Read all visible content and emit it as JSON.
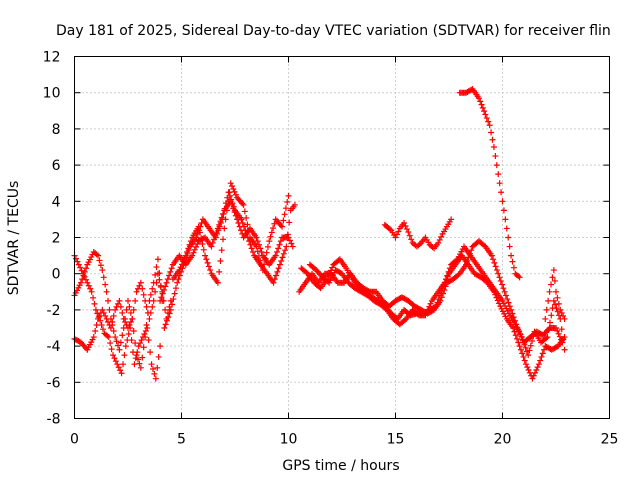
{
  "chart_data": {
    "type": "scatter",
    "title": "Day 181 of 2025, Sidereal Day-to-day VTEC variation (SDTVAR) for receiver flin",
    "xlabel": "GPS time / hours",
    "ylabel": "SDTVAR / TECUs",
    "xlim": [
      0,
      25
    ],
    "ylim": [
      -8,
      12
    ],
    "xticks": [
      0,
      5,
      10,
      15,
      20,
      25
    ],
    "yticks": [
      -8,
      -6,
      -4,
      -2,
      0,
      2,
      4,
      6,
      8,
      10,
      12
    ],
    "grid": true,
    "marker": "+",
    "color": "#ff0000",
    "series": [
      {
        "name": "s1",
        "points": [
          [
            0.0,
            1.0
          ],
          [
            0.2,
            0.5
          ],
          [
            0.4,
            0.0
          ],
          [
            0.6,
            -0.5
          ],
          [
            0.8,
            -1.0
          ],
          [
            1.0,
            -2.0
          ],
          [
            1.2,
            -2.6
          ],
          [
            1.4,
            -3.3
          ],
          [
            1.6,
            -3.5
          ],
          [
            1.8,
            -4.5
          ],
          [
            2.0,
            -5.0
          ],
          [
            2.2,
            -5.5
          ],
          [
            2.4,
            -4.0
          ],
          [
            2.6,
            -3.0
          ],
          [
            2.8,
            -5.0
          ],
          [
            3.0,
            -4.0
          ],
          [
            3.2,
            -3.5
          ],
          [
            3.4,
            -3.0
          ],
          [
            3.6,
            -5.0
          ],
          [
            3.8,
            -5.8
          ],
          [
            4.0,
            -4.0
          ]
        ]
      },
      {
        "name": "s2",
        "points": [
          [
            0.0,
            -1.2
          ],
          [
            0.3,
            -0.5
          ],
          [
            0.6,
            0.5
          ],
          [
            0.9,
            1.2
          ],
          [
            1.1,
            1.0
          ],
          [
            1.3,
            0.2
          ],
          [
            1.5,
            -1.0
          ],
          [
            1.7,
            -2.5
          ],
          [
            1.9,
            -3.5
          ],
          [
            2.1,
            -4.2
          ],
          [
            2.3,
            -3.0
          ],
          [
            2.5,
            -1.5
          ],
          [
            2.7,
            -2.5
          ],
          [
            2.9,
            -4.5
          ],
          [
            3.1,
            -5.2
          ],
          [
            3.3,
            -3.5
          ],
          [
            3.5,
            -1.5
          ],
          [
            3.7,
            -0.5
          ],
          [
            3.9,
            0.8
          ],
          [
            4.1,
            -1.5
          ]
        ]
      },
      {
        "name": "s3",
        "points": [
          [
            0.0,
            -3.6
          ],
          [
            0.3,
            -3.8
          ],
          [
            0.6,
            -4.2
          ],
          [
            0.9,
            -3.5
          ],
          [
            1.1,
            -2.5
          ],
          [
            1.3,
            -2.0
          ],
          [
            1.5,
            -2.5
          ],
          [
            1.7,
            -3.0
          ],
          [
            1.9,
            -2.0
          ],
          [
            2.1,
            -1.5
          ],
          [
            2.3,
            -2.5
          ],
          [
            2.5,
            -3.0
          ],
          [
            2.7,
            -2.5
          ],
          [
            2.9,
            -1.0
          ],
          [
            3.1,
            -0.5
          ],
          [
            3.3,
            -1.5
          ],
          [
            3.5,
            -2.5
          ],
          [
            3.7,
            -1.5
          ],
          [
            3.9,
            0.0
          ],
          [
            4.1,
            -1.0
          ],
          [
            4.3,
            -2.5
          ],
          [
            4.5,
            -1.5
          ]
        ]
      },
      {
        "name": "s4",
        "points": [
          [
            4.0,
            -1.5
          ],
          [
            4.3,
            -0.5
          ],
          [
            4.6,
            0.5
          ],
          [
            4.9,
            1.0
          ],
          [
            5.2,
            0.5
          ],
          [
            5.5,
            1.0
          ],
          [
            5.8,
            1.8
          ],
          [
            6.1,
            2.0
          ],
          [
            6.4,
            1.5
          ],
          [
            6.7,
            2.5
          ],
          [
            7.0,
            3.5
          ],
          [
            7.3,
            4.0
          ],
          [
            7.6,
            3.0
          ],
          [
            7.9,
            2.0
          ],
          [
            8.2,
            2.5
          ],
          [
            8.5,
            2.0
          ],
          [
            8.8,
            1.0
          ],
          [
            9.1,
            0.5
          ],
          [
            9.4,
            1.0
          ],
          [
            9.7,
            2.0
          ],
          [
            10.0,
            2.0
          ],
          [
            10.2,
            1.5
          ]
        ]
      },
      {
        "name": "s5",
        "points": [
          [
            4.2,
            -3.0
          ],
          [
            4.5,
            -2.0
          ],
          [
            4.8,
            -0.5
          ],
          [
            5.1,
            0.5
          ],
          [
            5.4,
            1.5
          ],
          [
            5.7,
            2.0
          ],
          [
            6.0,
            3.0
          ],
          [
            6.3,
            2.5
          ],
          [
            6.6,
            2.0
          ],
          [
            6.9,
            3.0
          ],
          [
            7.2,
            4.5
          ],
          [
            7.5,
            3.5
          ],
          [
            7.8,
            3.0
          ],
          [
            8.1,
            2.0
          ],
          [
            8.4,
            1.0
          ],
          [
            8.7,
            0.5
          ],
          [
            9.0,
            0.0
          ],
          [
            9.3,
            -0.5
          ],
          [
            9.6,
            0.5
          ],
          [
            9.9,
            1.5
          ],
          [
            10.1,
            3.5
          ],
          [
            10.3,
            3.8
          ]
        ]
      },
      {
        "name": "s6",
        "points": [
          [
            4.6,
            -0.3
          ],
          [
            4.9,
            0.2
          ],
          [
            5.2,
            1.0
          ],
          [
            5.5,
            2.0
          ],
          [
            5.8,
            2.6
          ],
          [
            6.1,
            1.0
          ],
          [
            6.4,
            0.0
          ],
          [
            6.7,
            -0.5
          ],
          [
            7.0,
            2.5
          ],
          [
            7.3,
            5.0
          ],
          [
            7.6,
            4.2
          ],
          [
            7.9,
            3.8
          ],
          [
            8.2,
            2.0
          ],
          [
            8.5,
            1.5
          ],
          [
            8.8,
            0.2
          ],
          [
            9.1,
            1.8
          ],
          [
            9.4,
            3.0
          ],
          [
            9.7,
            2.6
          ],
          [
            10.0,
            4.3
          ]
        ]
      },
      {
        "name": "s7",
        "points": [
          [
            10.5,
            -1.0
          ],
          [
            10.8,
            -0.5
          ],
          [
            11.1,
            0.0
          ],
          [
            11.4,
            -0.5
          ],
          [
            11.7,
            0.0
          ],
          [
            12.0,
            0.0
          ],
          [
            12.3,
            -0.5
          ],
          [
            12.6,
            -0.5
          ],
          [
            12.9,
            0.0
          ],
          [
            13.2,
            -0.5
          ],
          [
            13.5,
            -0.8
          ],
          [
            13.8,
            -1.0
          ],
          [
            14.1,
            -1.0
          ],
          [
            14.4,
            -1.5
          ],
          [
            14.7,
            -1.8
          ],
          [
            15.0,
            -1.5
          ],
          [
            15.3,
            -1.3
          ],
          [
            15.6,
            -1.5
          ],
          [
            15.9,
            -1.8
          ],
          [
            16.2,
            -2.0
          ],
          [
            16.5,
            -2.2
          ],
          [
            16.8,
            -2.0
          ],
          [
            17.1,
            -1.5
          ],
          [
            17.4,
            -0.5
          ],
          [
            17.7,
            -0.3
          ],
          [
            18.0,
            0.0
          ],
          [
            18.3,
            0.5
          ],
          [
            18.6,
            1.5
          ],
          [
            18.9,
            1.8
          ],
          [
            19.2,
            1.5
          ],
          [
            19.5,
            1.0
          ],
          [
            19.8,
            0.0
          ],
          [
            20.1,
            -1.0
          ],
          [
            20.4,
            -2.0
          ],
          [
            20.7,
            -3.0
          ],
          [
            21.0,
            -3.8
          ],
          [
            21.3,
            -3.5
          ],
          [
            21.6,
            -3.2
          ],
          [
            21.9,
            -3.4
          ],
          [
            22.2,
            -3.0
          ],
          [
            22.5,
            -3.0
          ],
          [
            22.8,
            -3.8
          ]
        ]
      },
      {
        "name": "s8",
        "points": [
          [
            10.6,
            0.3
          ],
          [
            10.9,
            0.0
          ],
          [
            11.2,
            -0.5
          ],
          [
            11.5,
            -0.8
          ],
          [
            11.8,
            -0.3
          ],
          [
            12.1,
            0.5
          ],
          [
            12.4,
            0.8
          ],
          [
            12.7,
            0.3
          ],
          [
            13.0,
            -0.3
          ],
          [
            13.3,
            -0.8
          ],
          [
            13.6,
            -1.0
          ],
          [
            13.9,
            -1.3
          ],
          [
            14.2,
            -1.5
          ],
          [
            14.5,
            -1.8
          ],
          [
            14.8,
            -2.2
          ],
          [
            15.1,
            -2.5
          ],
          [
            15.4,
            -2.0
          ],
          [
            15.7,
            -2.3
          ],
          [
            16.0,
            -2.2
          ],
          [
            16.3,
            -2.2
          ],
          [
            16.6,
            -2.0
          ],
          [
            16.9,
            -1.8
          ],
          [
            17.2,
            -0.8
          ],
          [
            17.5,
            0.0
          ],
          [
            17.8,
            0.5
          ],
          [
            18.1,
            1.0
          ],
          [
            18.4,
            0.5
          ],
          [
            18.7,
            0.0
          ],
          [
            19.0,
            -0.2
          ],
          [
            19.3,
            -0.5
          ],
          [
            19.6,
            -1.0
          ],
          [
            19.9,
            -1.8
          ],
          [
            20.2,
            -2.5
          ],
          [
            20.5,
            -3.0
          ],
          [
            20.8,
            -4.0
          ],
          [
            21.1,
            -5.0
          ],
          [
            21.4,
            -5.8
          ],
          [
            21.7,
            -5.0
          ],
          [
            22.0,
            -4.0
          ],
          [
            22.3,
            -4.2
          ],
          [
            22.6,
            -4.0
          ],
          [
            22.9,
            -3.5
          ]
        ]
      },
      {
        "name": "s9",
        "points": [
          [
            11.0,
            0.5
          ],
          [
            11.3,
            0.2
          ],
          [
            11.6,
            -0.2
          ],
          [
            11.9,
            -0.5
          ],
          [
            12.2,
            0.2
          ],
          [
            12.5,
            0.0
          ],
          [
            12.8,
            -0.5
          ],
          [
            13.1,
            -0.8
          ],
          [
            13.4,
            -1.0
          ],
          [
            13.7,
            -1.2
          ],
          [
            14.0,
            -1.5
          ],
          [
            14.3,
            -1.7
          ],
          [
            14.6,
            -2.0
          ],
          [
            14.9,
            -2.5
          ],
          [
            15.2,
            -2.8
          ],
          [
            15.5,
            -2.5
          ],
          [
            15.8,
            -2.0
          ],
          [
            16.1,
            -2.3
          ],
          [
            16.4,
            -2.3
          ],
          [
            16.7,
            -1.5
          ],
          [
            17.0,
            -1.0
          ],
          [
            17.3,
            -0.5
          ],
          [
            17.6,
            0.5
          ],
          [
            17.9,
            0.8
          ],
          [
            18.2,
            1.5
          ],
          [
            18.5,
            1.0
          ],
          [
            18.8,
            0.5
          ],
          [
            19.1,
            0.0
          ],
          [
            19.4,
            -0.5
          ],
          [
            19.7,
            -1.0
          ],
          [
            20.0,
            -1.5
          ],
          [
            20.3,
            -2.2
          ],
          [
            20.6,
            -2.8
          ],
          [
            20.9,
            -3.5
          ],
          [
            21.2,
            -4.5
          ],
          [
            21.5,
            -3.2
          ],
          [
            21.8,
            -3.8
          ],
          [
            22.1,
            -3.5
          ],
          [
            22.4,
            -1.5
          ],
          [
            22.7,
            -2.5
          ],
          [
            22.9,
            -4.2
          ]
        ]
      },
      {
        "name": "s10",
        "points": [
          [
            14.5,
            2.7
          ],
          [
            14.8,
            2.4
          ],
          [
            15.0,
            2.0
          ],
          [
            15.2,
            2.5
          ],
          [
            15.4,
            2.8
          ],
          [
            15.6,
            2.3
          ],
          [
            15.8,
            1.7
          ],
          [
            16.0,
            1.5
          ],
          [
            16.2,
            1.7
          ],
          [
            16.4,
            2.0
          ],
          [
            16.6,
            1.6
          ],
          [
            16.8,
            1.4
          ],
          [
            17.0,
            1.7
          ],
          [
            17.2,
            2.2
          ],
          [
            17.4,
            2.6
          ],
          [
            17.6,
            3.0
          ]
        ]
      },
      {
        "name": "s11",
        "points": [
          [
            18.0,
            10.0
          ],
          [
            18.3,
            10.0
          ],
          [
            18.6,
            10.2
          ],
          [
            18.9,
            9.7
          ],
          [
            19.2,
            8.8
          ],
          [
            19.4,
            8.2
          ],
          [
            19.6,
            7.0
          ],
          [
            19.8,
            5.5
          ],
          [
            20.0,
            4.0
          ],
          [
            20.2,
            2.5
          ],
          [
            20.4,
            1.0
          ],
          [
            20.6,
            0.0
          ],
          [
            20.8,
            -0.2
          ]
        ]
      },
      {
        "name": "s12",
        "points": [
          [
            22.0,
            -2.5
          ],
          [
            22.2,
            -1.0
          ],
          [
            22.4,
            0.2
          ],
          [
            22.5,
            -1.0
          ],
          [
            22.7,
            -2.0
          ],
          [
            22.9,
            -2.5
          ]
        ]
      }
    ]
  }
}
